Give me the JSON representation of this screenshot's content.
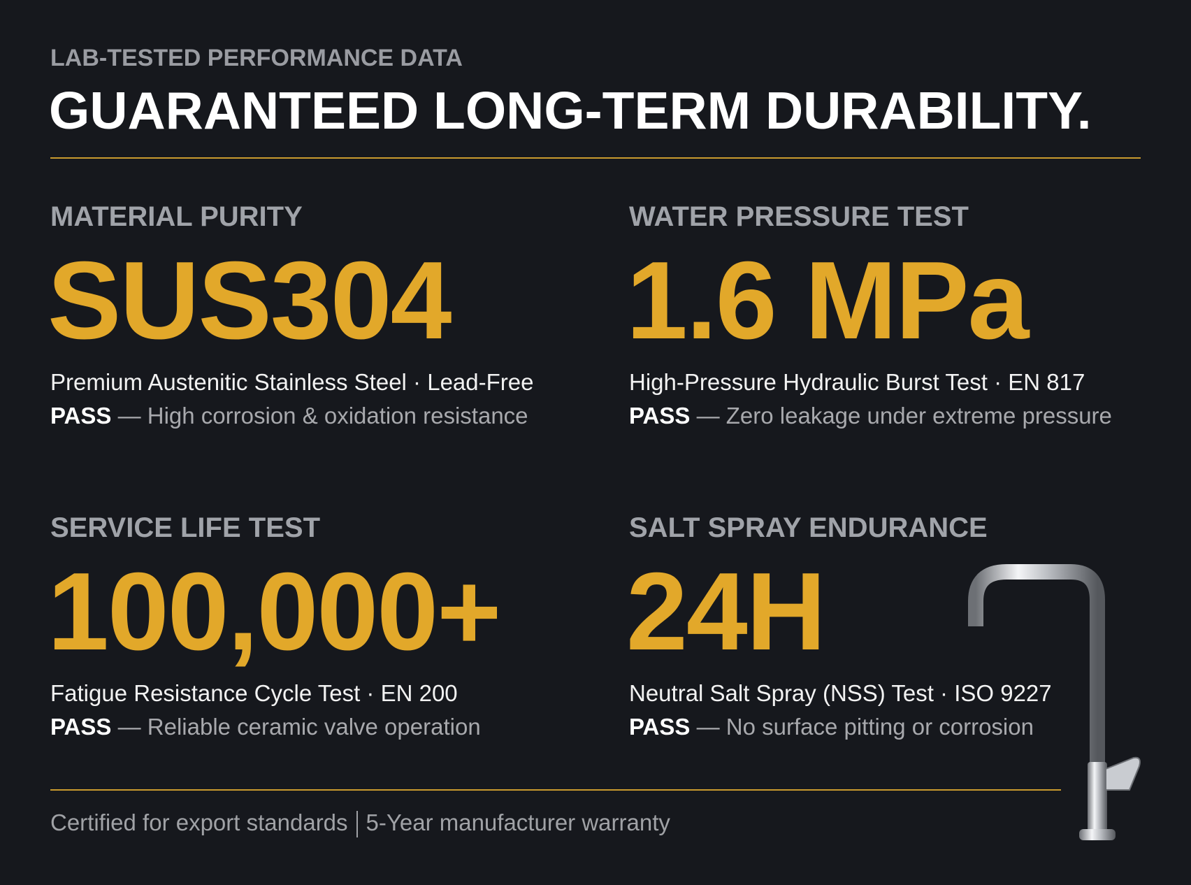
{
  "header": {
    "eyebrow": "LAB-TESTED PERFORMANCE DATA",
    "title": "GUARANTEED LONG-TERM DURABILITY."
  },
  "metrics": [
    {
      "label": "MATERIAL PURITY",
      "value": "SUS304",
      "description": "Premium Austenitic Stainless Steel · Lead-Free",
      "result": "PASS",
      "note": "— High corrosion & oxidation resistance"
    },
    {
      "label": "WATER PRESSURE TEST",
      "value": "1.6 MPa",
      "description": "High-Pressure Hydraulic Burst Test · EN 817",
      "result": "PASS",
      "note": "— Zero leakage under extreme pressure"
    },
    {
      "label": "SERVICE LIFE TEST",
      "value": "100,000+",
      "description": "Fatigue Resistance Cycle Test · EN 200",
      "result": "PASS",
      "note": "— Reliable ceramic valve operation"
    },
    {
      "label": "SALT SPRAY ENDURANCE",
      "value": "24H",
      "description": "Neutral Salt Spray (NSS) Test · ISO 9227",
      "result": "PASS",
      "note": "— No surface pitting or corrosion"
    }
  ],
  "footer": {
    "left": "Certified for export standards",
    "right": "5-Year manufacturer warranty"
  }
}
